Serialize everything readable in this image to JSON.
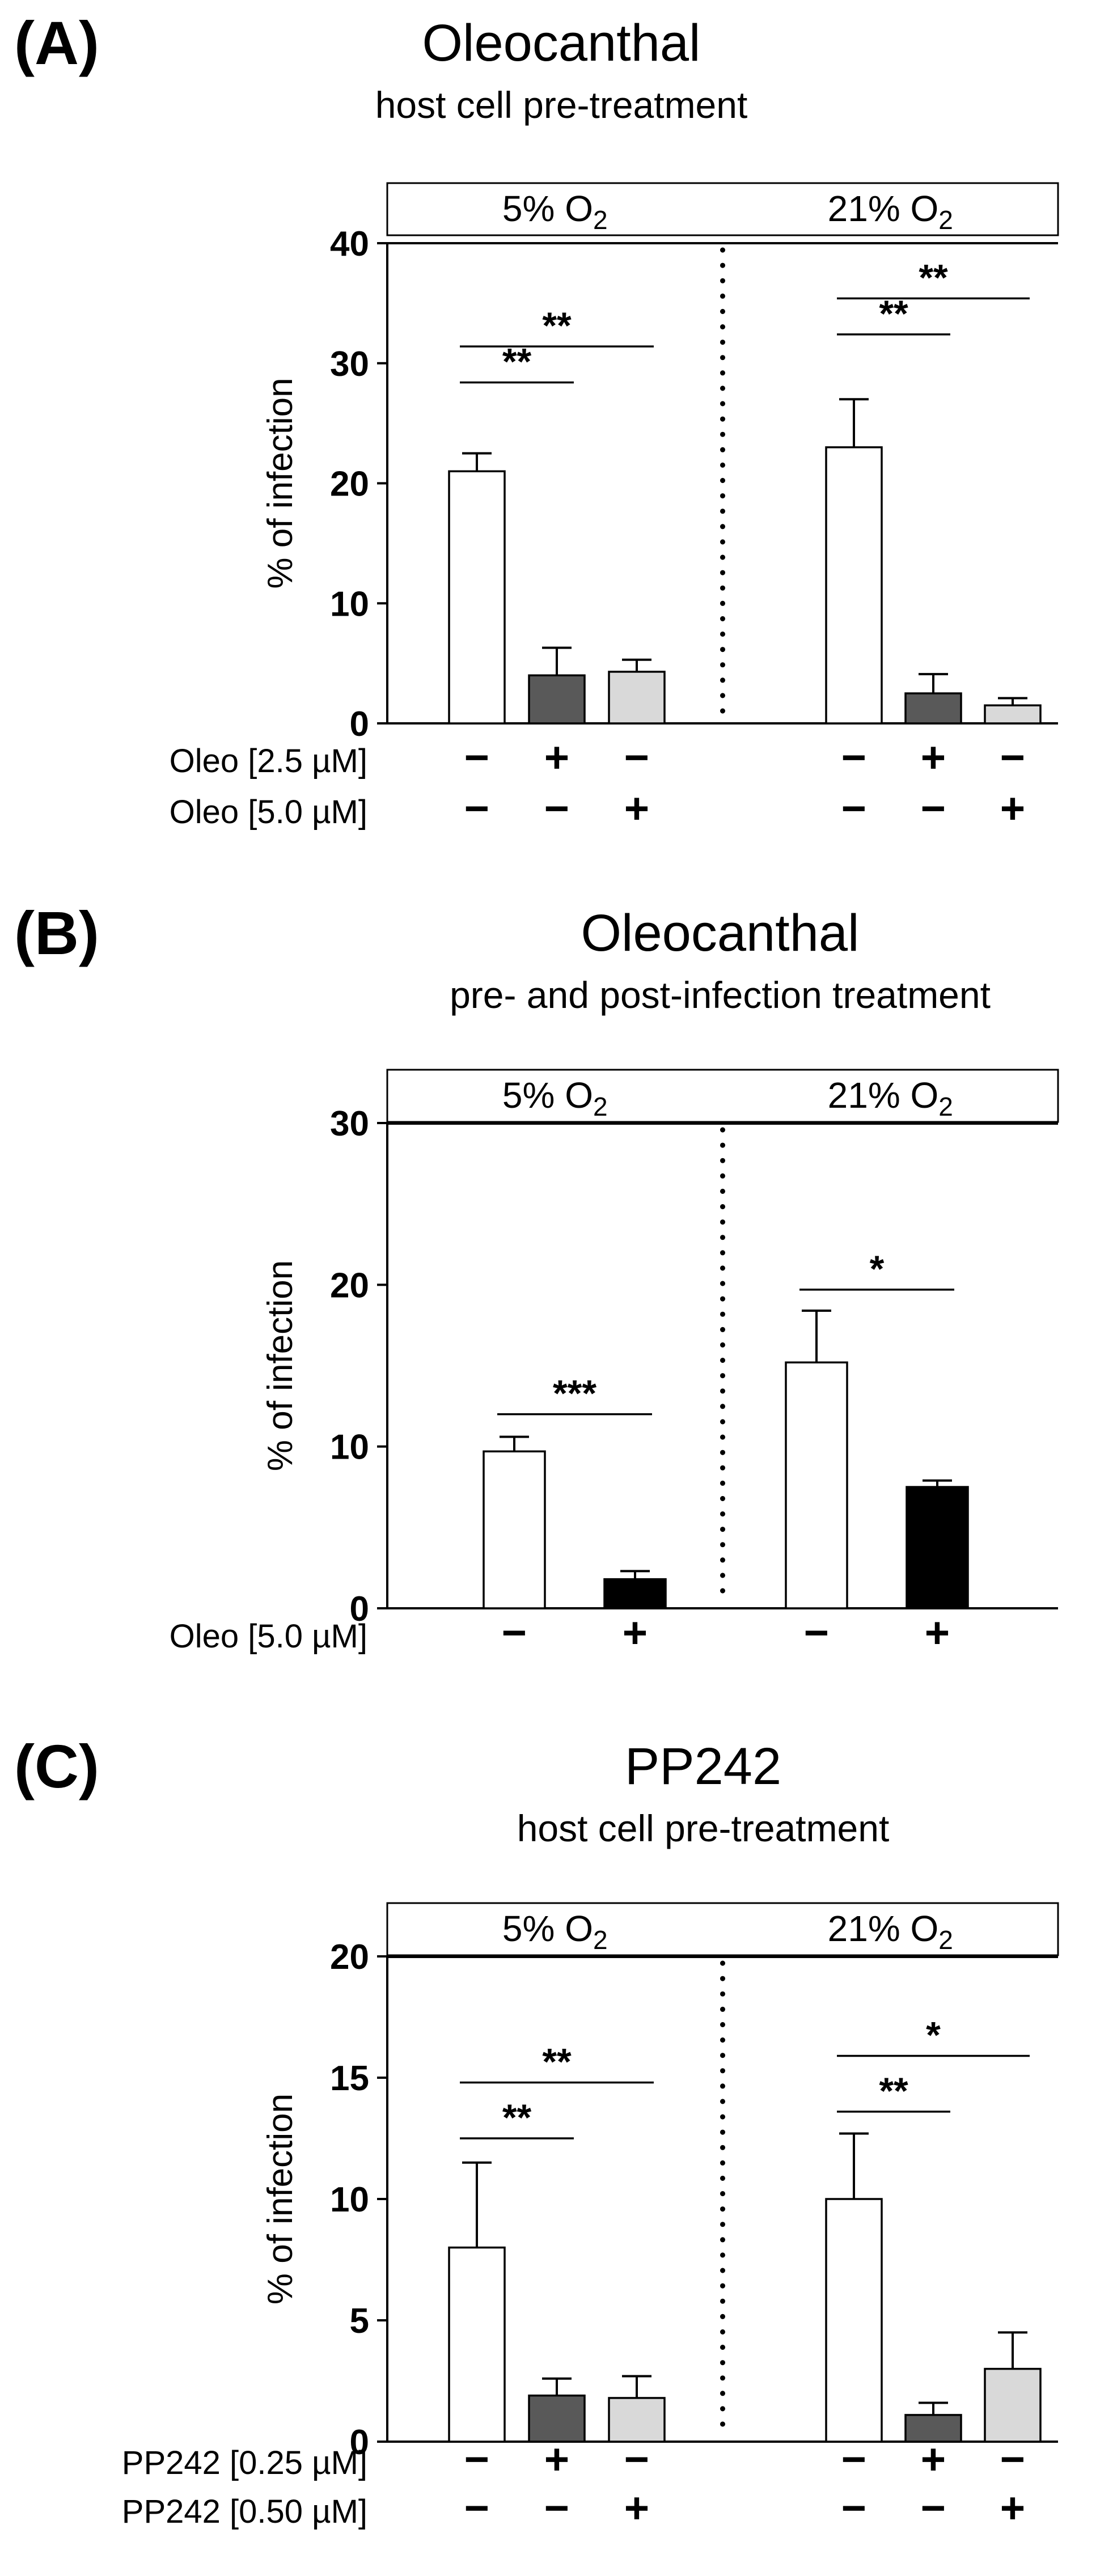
{
  "panels": [
    {
      "label": "(A)"
    },
    {
      "label": "(B)"
    },
    {
      "label": "(C)"
    }
  ],
  "chart_data": [
    {
      "type": "bar",
      "title": "Oleocanthal",
      "subtitle": "host cell pre-treatment",
      "ylabel": "% of infection",
      "ylim": [
        0,
        40
      ],
      "yticks": [
        0,
        10,
        20,
        30,
        40
      ],
      "grid": "off",
      "legend": "none",
      "bar_edge_color": "#000000",
      "groups": [
        {
          "condition": "5% O₂",
          "bars": [
            {
              "value": 21.0,
              "error": 1.5,
              "fill": "#ffffff"
            },
            {
              "value": 4.0,
              "error": 2.3,
              "fill": "#595959"
            },
            {
              "value": 4.3,
              "error": 1.0,
              "fill": "#d9d9d9"
            }
          ],
          "significance": [
            {
              "from": 0,
              "to": 1,
              "y": 28.4,
              "stars": "**"
            },
            {
              "from": 0,
              "to": 2,
              "y": 31.4,
              "stars": "**"
            }
          ]
        },
        {
          "condition": "21% O₂",
          "bars": [
            {
              "value": 23.0,
              "error": 4.0,
              "fill": "#ffffff"
            },
            {
              "value": 2.5,
              "error": 1.6,
              "fill": "#595959"
            },
            {
              "value": 1.5,
              "error": 0.6,
              "fill": "#d9d9d9"
            }
          ],
          "significance": [
            {
              "from": 0,
              "to": 1,
              "y": 32.4,
              "stars": "**"
            },
            {
              "from": 0,
              "to": 2,
              "y": 35.4,
              "stars": "**"
            }
          ]
        }
      ],
      "x_rows": [
        {
          "label": "Oleo [2.5 µM]",
          "symbols": [
            "−",
            "+",
            "−",
            "−",
            "+",
            "−"
          ]
        },
        {
          "label": "Oleo [5.0 µM]",
          "symbols": [
            "−",
            "−",
            "+",
            "−",
            "−",
            "+"
          ]
        }
      ]
    },
    {
      "type": "bar",
      "title": "Oleocanthal",
      "subtitle": "pre- and post-infection treatment",
      "ylabel": "% of infection",
      "ylim": [
        0,
        30
      ],
      "yticks": [
        0,
        10,
        20,
        30
      ],
      "grid": "off",
      "legend": "none",
      "bar_edge_color": "#000000",
      "groups": [
        {
          "condition": "5% O₂",
          "bars": [
            {
              "value": 9.7,
              "error": 0.9,
              "fill": "#ffffff"
            },
            {
              "value": 1.8,
              "error": 0.5,
              "fill": "#000000"
            }
          ],
          "significance": [
            {
              "from": 0,
              "to": 1,
              "y": 12.0,
              "stars": "***"
            }
          ]
        },
        {
          "condition": "21% O₂",
          "bars": [
            {
              "value": 15.2,
              "error": 3.2,
              "fill": "#ffffff"
            },
            {
              "value": 7.5,
              "error": 0.4,
              "fill": "#000000"
            }
          ],
          "significance": [
            {
              "from": 0,
              "to": 1,
              "y": 19.7,
              "stars": "*"
            }
          ]
        }
      ],
      "x_rows": [
        {
          "label": "Oleo [5.0 µM]",
          "symbols": [
            "−",
            "+",
            "−",
            "+"
          ]
        }
      ]
    },
    {
      "type": "bar",
      "title": "PP242",
      "subtitle": "host cell pre-treatment",
      "ylabel": "% of infection",
      "ylim": [
        0,
        20
      ],
      "yticks": [
        0,
        5,
        10,
        15,
        20
      ],
      "grid": "off",
      "legend": "none",
      "bar_edge_color": "#000000",
      "groups": [
        {
          "condition": "5% O₂",
          "bars": [
            {
              "value": 8.0,
              "error": 3.5,
              "fill": "#ffffff"
            },
            {
              "value": 1.9,
              "error": 0.7,
              "fill": "#595959"
            },
            {
              "value": 1.8,
              "error": 0.9,
              "fill": "#d9d9d9"
            }
          ],
          "significance": [
            {
              "from": 0,
              "to": 1,
              "y": 12.5,
              "stars": "**"
            },
            {
              "from": 0,
              "to": 2,
              "y": 14.8,
              "stars": "**"
            }
          ]
        },
        {
          "condition": "21% O₂",
          "bars": [
            {
              "value": 10.0,
              "error": 2.7,
              "fill": "#ffffff"
            },
            {
              "value": 1.1,
              "error": 0.5,
              "fill": "#595959"
            },
            {
              "value": 3.0,
              "error": 1.5,
              "fill": "#d9d9d9"
            }
          ],
          "significance": [
            {
              "from": 0,
              "to": 1,
              "y": 13.6,
              "stars": "**"
            },
            {
              "from": 0,
              "to": 2,
              "y": 15.9,
              "stars": "*"
            }
          ]
        }
      ],
      "x_rows": [
        {
          "label": "PP242 [0.25 µM]",
          "symbols": [
            "−",
            "+",
            "−",
            "−",
            "+",
            "−"
          ]
        },
        {
          "label": "PP242 [0.50 µM]",
          "symbols": [
            "−",
            "−",
            "+",
            "−",
            "−",
            "+"
          ]
        }
      ]
    }
  ]
}
